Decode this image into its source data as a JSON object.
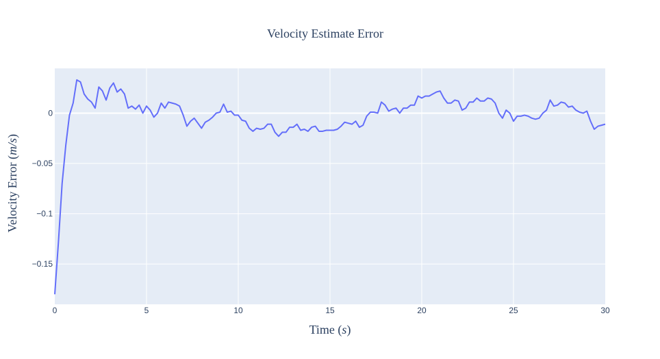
{
  "chart_data": {
    "type": "line",
    "title": "Velocity Estimate Error",
    "xlabel_text": "Time",
    "xlabel_unit": "s",
    "ylabel_text": "Velocity Error",
    "ylabel_unit": "m/s",
    "xlim": [
      0,
      30
    ],
    "ylim": [
      -0.19,
      0.0445
    ],
    "x_ticks": [
      0,
      5,
      10,
      15,
      20,
      25,
      30
    ],
    "x_tick_labels": [
      "0",
      "5",
      "10",
      "15",
      "20",
      "25",
      "30"
    ],
    "y_ticks": [
      0,
      -0.05,
      -0.1,
      -0.15
    ],
    "y_tick_labels": [
      "0",
      "−0.05",
      "−0.1",
      "−0.15"
    ],
    "grid": true,
    "colors": {
      "plot_background": "#e5ecf6",
      "grid": "#ffffff",
      "line": "#636efa",
      "text": "#2a3f5f"
    },
    "series": [
      {
        "x": [
          0,
          0.2,
          0.4,
          0.6,
          0.8,
          1.0,
          1.2,
          1.4,
          1.6,
          1.8,
          2.0,
          2.2,
          2.4,
          2.6,
          2.8,
          3.0,
          3.2,
          3.4,
          3.6,
          3.8,
          4.0,
          4.2,
          4.4,
          4.6,
          4.8,
          5.0,
          5.2,
          5.4,
          5.6,
          5.8,
          6.0,
          6.2,
          6.4,
          6.6,
          6.8,
          7.0,
          7.2,
          7.4,
          7.6,
          7.8,
          8.0,
          8.2,
          8.4,
          8.6,
          8.8,
          9.0,
          9.2,
          9.4,
          9.6,
          9.8,
          10.0,
          10.2,
          10.4,
          10.6,
          10.8,
          11.0,
          11.2,
          11.4,
          11.6,
          11.8,
          12.0,
          12.2,
          12.4,
          12.6,
          12.8,
          13.0,
          13.2,
          13.4,
          13.6,
          13.8,
          14.0,
          14.2,
          14.4,
          14.6,
          14.8,
          15.0,
          15.2,
          15.4,
          15.6,
          15.8,
          16.0,
          16.2,
          16.4,
          16.6,
          16.8,
          17.0,
          17.2,
          17.4,
          17.6,
          17.8,
          18.0,
          18.2,
          18.4,
          18.6,
          18.8,
          19.0,
          19.2,
          19.4,
          19.6,
          19.8,
          20.0,
          20.2,
          20.4,
          20.6,
          20.8,
          21.0,
          21.2,
          21.4,
          21.6,
          21.8,
          22.0,
          22.2,
          22.4,
          22.6,
          22.8,
          23.0,
          23.2,
          23.4,
          23.6,
          23.8,
          24.0,
          24.2,
          24.4,
          24.6,
          24.8,
          25.0,
          25.2,
          25.4,
          25.6,
          25.8,
          26.0,
          26.2,
          26.4,
          26.6,
          26.8,
          27.0,
          27.2,
          27.4,
          27.6,
          27.8,
          28.0,
          28.2,
          28.4,
          28.6,
          28.8,
          29.0,
          29.2,
          29.4,
          29.6,
          29.8,
          30.0
        ],
        "y": [
          -0.18,
          -0.128,
          -0.07,
          -0.032,
          -0.002,
          0.01,
          0.033,
          0.031,
          0.019,
          0.014,
          0.011,
          0.005,
          0.026,
          0.022,
          0.013,
          0.025,
          0.03,
          0.021,
          0.024,
          0.019,
          0.005,
          0.007,
          0.004,
          0.008,
          0.0,
          0.007,
          0.003,
          -0.004,
          0.0,
          0.01,
          0.005,
          0.011,
          0.01,
          0.009,
          0.007,
          -0.002,
          -0.013,
          -0.008,
          -0.005,
          -0.01,
          -0.015,
          -0.009,
          -0.007,
          -0.004,
          0.0,
          0.001,
          0.009,
          0.001,
          0.002,
          -0.002,
          -0.002,
          -0.007,
          -0.008,
          -0.015,
          -0.018,
          -0.015,
          -0.016,
          -0.015,
          -0.011,
          -0.011,
          -0.019,
          -0.023,
          -0.019,
          -0.019,
          -0.014,
          -0.014,
          -0.011,
          -0.017,
          -0.016,
          -0.018,
          -0.014,
          -0.013,
          -0.018,
          -0.018,
          -0.017,
          -0.017,
          -0.017,
          -0.016,
          -0.013,
          -0.009,
          -0.01,
          -0.011,
          -0.008,
          -0.014,
          -0.012,
          -0.003,
          0.001,
          0.001,
          0.0,
          0.011,
          0.008,
          0.002,
          0.004,
          0.005,
          0.0,
          0.005,
          0.005,
          0.008,
          0.008,
          0.017,
          0.015,
          0.017,
          0.017,
          0.019,
          0.021,
          0.022,
          0.015,
          0.01,
          0.01,
          0.013,
          0.012,
          0.003,
          0.005,
          0.011,
          0.011,
          0.015,
          0.012,
          0.012,
          0.015,
          0.014,
          0.01,
          0.0,
          -0.005,
          0.003,
          0.0,
          -0.008,
          -0.003,
          -0.003,
          -0.002,
          -0.003,
          -0.005,
          -0.006,
          -0.005,
          0.0,
          0.003,
          0.013,
          0.007,
          0.008,
          0.011,
          0.01,
          0.006,
          0.007,
          0.003,
          0.001,
          0.0,
          0.002,
          -0.008,
          -0.016,
          -0.013,
          -0.012,
          -0.011
        ]
      }
    ]
  }
}
